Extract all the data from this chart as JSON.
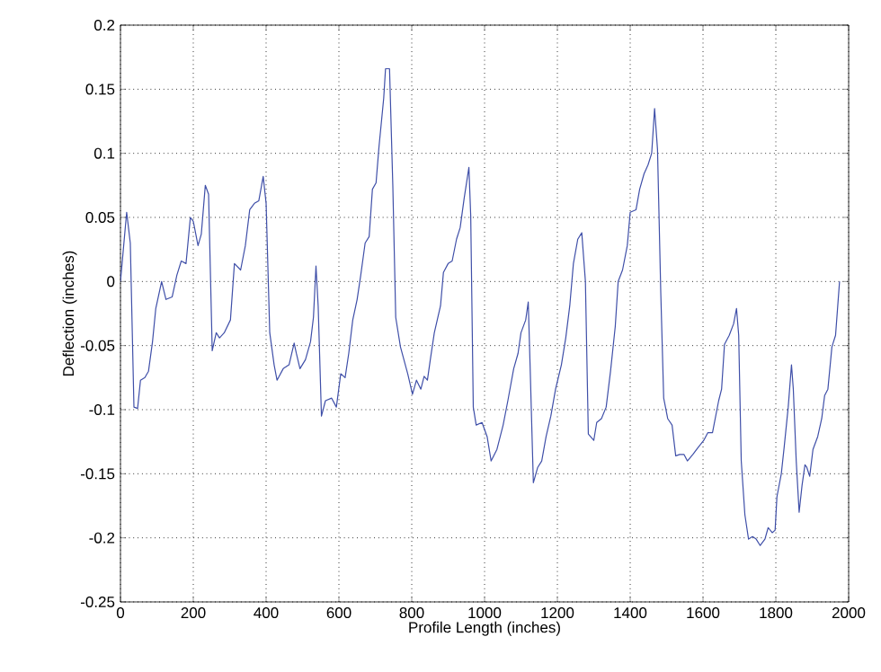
{
  "chart_data": {
    "type": "line",
    "xlabel": "Profile Length (inches)",
    "ylabel": "Deflection (inches)",
    "xlim": [
      0,
      2000
    ],
    "ylim": [
      -0.25,
      0.2
    ],
    "xticks": [
      0,
      200,
      400,
      600,
      800,
      1000,
      1200,
      1400,
      1600,
      1800,
      2000
    ],
    "yticks": [
      -0.25,
      -0.2,
      -0.15,
      -0.1,
      -0.05,
      0,
      0.05,
      0.1,
      0.15,
      0.2
    ],
    "grid": true,
    "line_style": "solid",
    "series": [
      {
        "color": "#3f4fa8",
        "x": [
          0,
          17,
          27,
          37,
          47,
          55,
          67,
          77,
          88,
          97,
          113,
          125,
          142,
          155,
          167,
          180,
          192,
          200,
          213,
          222,
          233,
          242,
          252,
          263,
          272,
          285,
          302,
          313,
          330,
          343,
          355,
          368,
          380,
          392,
          400,
          410,
          422,
          430,
          447,
          463,
          477,
          483,
          493,
          508,
          522,
          530,
          537,
          543,
          552,
          563,
          580,
          593,
          605,
          617,
          627,
          638,
          650,
          660,
          672,
          683,
          692,
          702,
          710,
          723,
          728,
          739,
          748,
          756,
          769,
          789,
          802,
          813,
          825,
          834,
          843,
          851,
          862,
          879,
          887,
          900,
          911,
          923,
          933,
          944,
          957,
          962,
          969,
          977,
          993,
          1007,
          1018,
          1034,
          1051,
          1064,
          1080,
          1092,
          1100,
          1113,
          1120,
          1125,
          1134,
          1146,
          1157,
          1169,
          1182,
          1195,
          1211,
          1223,
          1234,
          1244,
          1256,
          1267,
          1277,
          1285,
          1300,
          1308,
          1321,
          1334,
          1346,
          1359,
          1367,
          1379,
          1392,
          1400,
          1416,
          1426,
          1438,
          1449,
          1459,
          1467,
          1475,
          1484,
          1492,
          1503,
          1515,
          1525,
          1536,
          1548,
          1557,
          1572,
          1585,
          1602,
          1613,
          1626,
          1643,
          1651,
          1659,
          1672,
          1684,
          1692,
          1698,
          1705,
          1715,
          1725,
          1736,
          1746,
          1757,
          1770,
          1779,
          1790,
          1798,
          1803,
          1815,
          1823,
          1834,
          1843,
          1848,
          1856,
          1864,
          1872,
          1880,
          1885,
          1893,
          1902,
          1915,
          1926,
          1934,
          1943,
          1954,
          1964,
          1975
        ],
        "values": [
          0,
          0.054,
          0.03,
          -0.098,
          -0.099,
          -0.077,
          -0.075,
          -0.07,
          -0.047,
          -0.021,
          0,
          -0.014,
          -0.012,
          0.005,
          0.016,
          0.014,
          0.05,
          0.047,
          0.028,
          0.037,
          0.075,
          0.068,
          -0.054,
          -0.04,
          -0.044,
          -0.04,
          -0.03,
          0.014,
          0.009,
          0.028,
          0.056,
          0.061,
          0.063,
          0.082,
          0.061,
          -0.04,
          -0.065,
          -0.077,
          -0.068,
          -0.065,
          -0.048,
          -0.056,
          -0.068,
          -0.061,
          -0.047,
          -0.028,
          0.012,
          -0.019,
          -0.105,
          -0.093,
          -0.091,
          -0.098,
          -0.072,
          -0.075,
          -0.056,
          -0.03,
          -0.014,
          0.005,
          0.03,
          0.035,
          0.072,
          0.077,
          0.105,
          0.143,
          0.166,
          0.166,
          0.075,
          -0.028,
          -0.051,
          -0.072,
          -0.088,
          -0.077,
          -0.084,
          -0.074,
          -0.077,
          -0.061,
          -0.04,
          -0.019,
          0.007,
          0.014,
          0.016,
          0.033,
          0.042,
          0.065,
          0.089,
          0.051,
          -0.098,
          -0.112,
          -0.11,
          -0.121,
          -0.14,
          -0.131,
          -0.112,
          -0.093,
          -0.068,
          -0.056,
          -0.04,
          -0.03,
          -0.016,
          -0.065,
          -0.157,
          -0.145,
          -0.14,
          -0.121,
          -0.105,
          -0.084,
          -0.065,
          -0.044,
          -0.019,
          0.014,
          0.033,
          0.038,
          0,
          -0.119,
          -0.124,
          -0.11,
          -0.107,
          -0.098,
          -0.07,
          -0.035,
          0,
          0.009,
          0.028,
          0.054,
          0.056,
          0.072,
          0.084,
          0.091,
          0.1,
          0.135,
          0.103,
          -0.009,
          -0.091,
          -0.107,
          -0.112,
          -0.136,
          -0.135,
          -0.135,
          -0.14,
          -0.135,
          -0.13,
          -0.124,
          -0.118,
          -0.118,
          -0.093,
          -0.084,
          -0.049,
          -0.042,
          -0.033,
          -0.021,
          -0.042,
          -0.14,
          -0.182,
          -0.201,
          -0.199,
          -0.201,
          -0.206,
          -0.201,
          -0.192,
          -0.196,
          -0.194,
          -0.168,
          -0.15,
          -0.129,
          -0.098,
          -0.065,
          -0.084,
          -0.14,
          -0.18,
          -0.159,
          -0.143,
          -0.145,
          -0.152,
          -0.131,
          -0.121,
          -0.107,
          -0.089,
          -0.084,
          -0.051,
          -0.042,
          0
        ]
      }
    ]
  }
}
